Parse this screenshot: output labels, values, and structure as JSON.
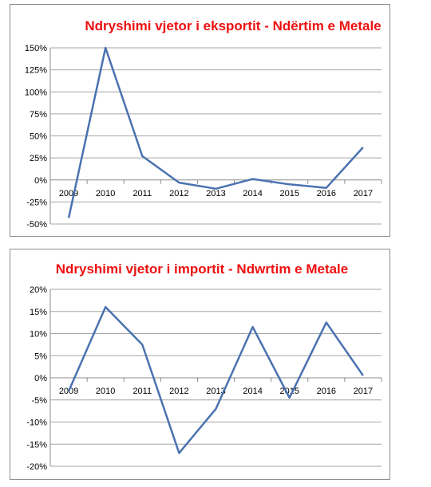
{
  "chart_data": [
    {
      "type": "line",
      "title": "Ndryshimi vjetor i eksportit - Ndërtim e Metale",
      "categories": [
        "2009",
        "2010",
        "2011",
        "2012",
        "2013",
        "2014",
        "2015",
        "2016",
        "2017"
      ],
      "y_ticks": [
        "150%",
        "125%",
        "100%",
        "75%",
        "50%",
        "25%",
        "0%",
        "-25%",
        "-50%"
      ],
      "ylim": [
        -50,
        150
      ],
      "y_unit": "%",
      "values": [
        -43,
        150,
        27,
        -3,
        -10,
        1,
        -5,
        -9,
        37
      ],
      "line_color": "#4a72b0",
      "title_color": "#ee1111",
      "grid": true,
      "legend": "none"
    },
    {
      "type": "line",
      "title": "Ndryshimi vjetor i importit - Ndwrtim e Metale",
      "categories": [
        "2009",
        "2010",
        "2011",
        "2012",
        "2013",
        "2014",
        "2015",
        "2016",
        "2017"
      ],
      "y_ticks": [
        "20%",
        "15%",
        "10%",
        "5%",
        "0%",
        "-5%",
        "-10%",
        "-15%",
        "-20%"
      ],
      "ylim": [
        -20,
        20
      ],
      "y_unit": "%",
      "values": [
        -3,
        16,
        7.5,
        -17,
        -7,
        11.5,
        -4.5,
        12.5,
        0.5
      ],
      "line_color": "#4a72b0",
      "title_color": "#ee1111",
      "grid": true,
      "legend": "none"
    }
  ]
}
